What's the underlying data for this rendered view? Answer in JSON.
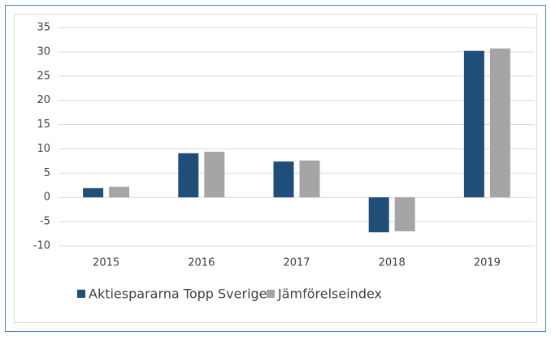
{
  "chart_data": {
    "type": "bar",
    "categories": [
      "2015",
      "2016",
      "2017",
      "2018",
      "2019"
    ],
    "series": [
      {
        "name": "Aktiespararna Topp Sverige",
        "color": "#1f4e79",
        "values": [
          1.9,
          9.1,
          7.4,
          -7.2,
          30.2
        ]
      },
      {
        "name": "Jämförelseindex",
        "color": "#a5a5a5",
        "values": [
          2.2,
          9.4,
          7.6,
          -7.0,
          30.7
        ]
      }
    ],
    "ylim": [
      -10,
      35
    ],
    "yticks": [
      -10,
      -5,
      0,
      5,
      10,
      15,
      20,
      25,
      30,
      35
    ],
    "grid": true,
    "legend": "bottom"
  }
}
